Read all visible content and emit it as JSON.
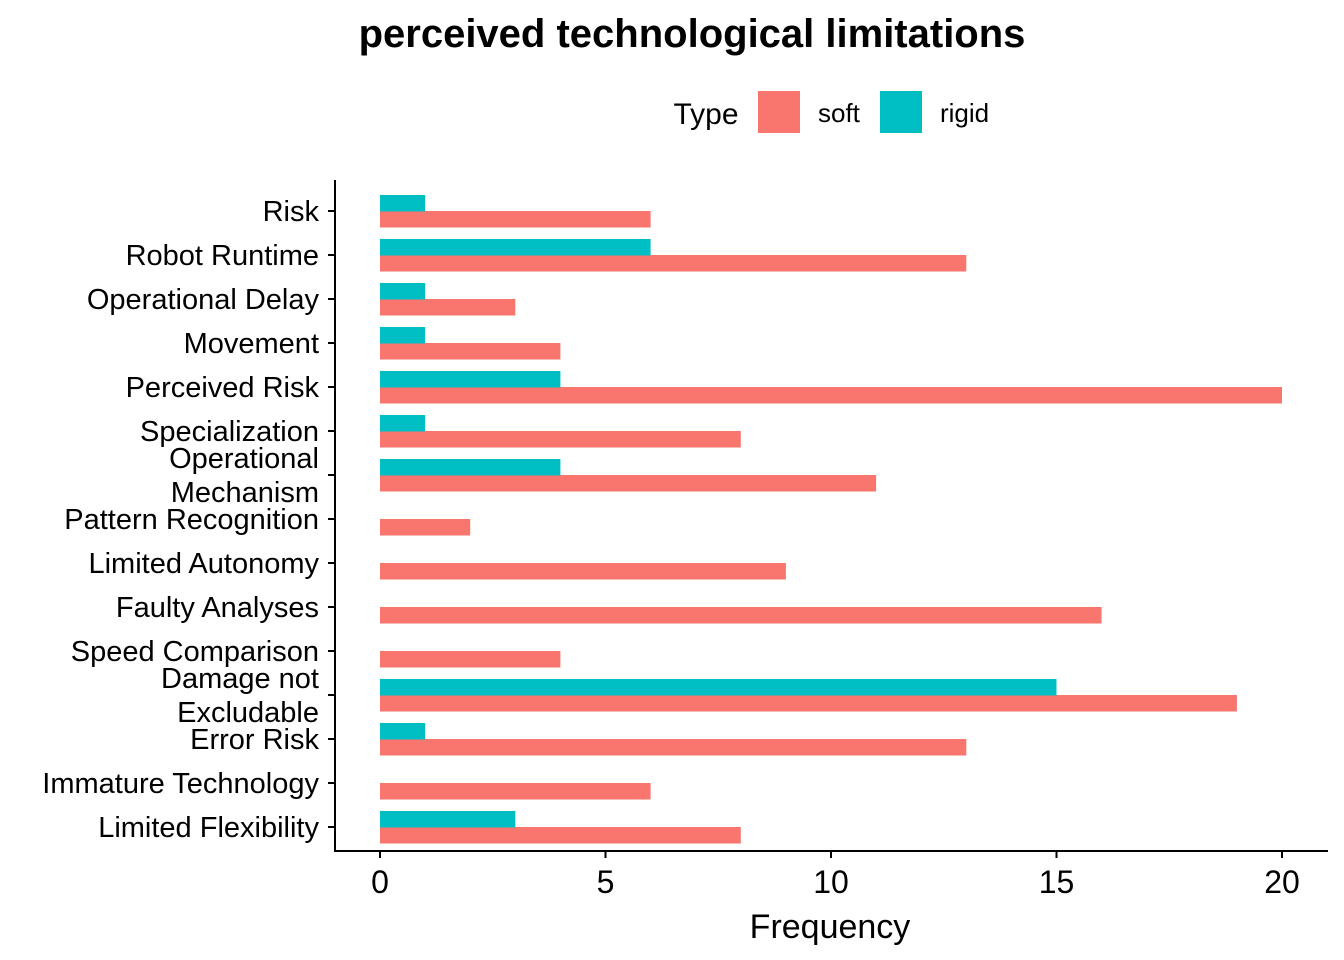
{
  "chart_data": {
    "type": "bar",
    "orientation": "horizontal",
    "title": "perceived technological limitations",
    "xlabel": "Frequency",
    "ylabel": "",
    "xlim": [
      0,
      20
    ],
    "xticks": [
      "0",
      "5",
      "10",
      "15",
      "20"
    ],
    "grid": false,
    "legend": {
      "title": "Type",
      "placement": "top",
      "entries": [
        {
          "label": "soft",
          "color": "#F8766D"
        },
        {
          "label": "rigid",
          "color": "#00BFC4"
        }
      ]
    },
    "categories": [
      [
        "Risk"
      ],
      [
        "Robot Runtime"
      ],
      [
        "Operational Delay"
      ],
      [
        "Movement"
      ],
      [
        "Perceived Risk"
      ],
      [
        "Specialization"
      ],
      [
        "Operational",
        "Mechanism"
      ],
      [
        "Pattern Recognition"
      ],
      [
        "Limited Autonomy"
      ],
      [
        "Faulty Analyses"
      ],
      [
        "Speed Comparison"
      ],
      [
        "Damage not",
        "Excludable"
      ],
      [
        "Error Risk"
      ],
      [
        "Immature Technology"
      ],
      [
        "Limited Flexibility"
      ]
    ],
    "series": [
      {
        "name": "soft",
        "color": "#F8766D",
        "values": [
          6,
          13,
          3,
          4,
          20,
          8,
          11,
          2,
          9,
          16,
          4,
          19,
          13,
          6,
          8
        ]
      },
      {
        "name": "rigid",
        "color": "#00BFC4",
        "values": [
          1,
          6,
          1,
          1,
          4,
          1,
          4,
          0,
          0,
          0,
          0,
          15,
          1,
          0,
          3
        ]
      }
    ]
  }
}
